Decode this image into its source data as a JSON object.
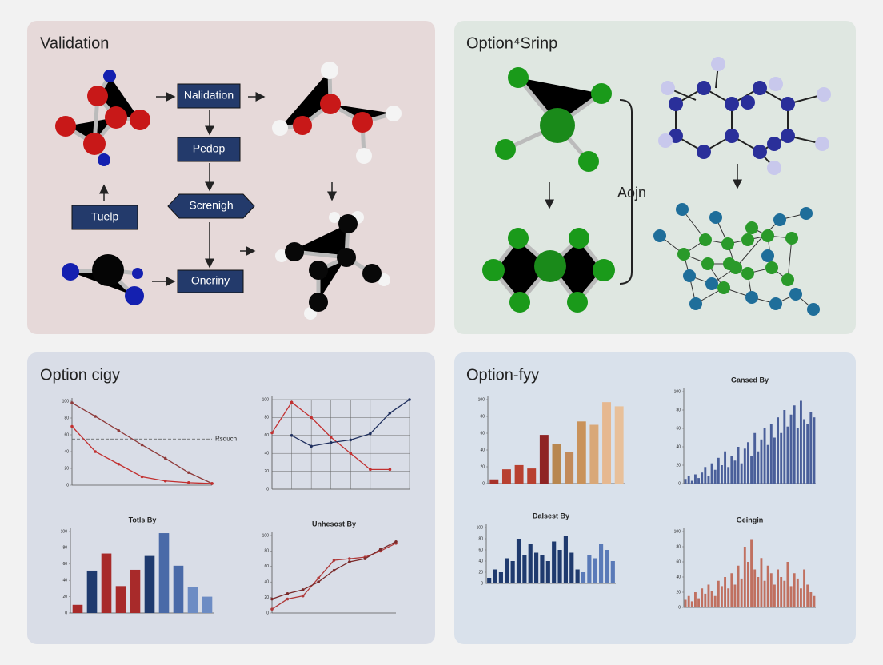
{
  "panels": [
    {
      "title": "Validation",
      "boxes": [
        "Nalidation",
        "Pedop",
        "Screnigh",
        "Tuelp",
        "Oncriny"
      ]
    },
    {
      "title": "Option⁴Srinp",
      "label": "Aojn"
    },
    {
      "title": "Option cigy"
    },
    {
      "title": "Option-fyy"
    }
  ],
  "chart_data": [
    {
      "type": "line",
      "annotation": "Rsduch",
      "reference": 55,
      "ylim": [
        0,
        100
      ],
      "yticks": [
        0,
        20,
        40,
        60,
        80,
        100
      ],
      "series": [
        {
          "color": "#8e3a3a",
          "values": [
            98,
            82,
            65,
            48,
            32,
            15,
            2
          ]
        },
        {
          "color": "#c23030",
          "values": [
            70,
            40,
            25,
            10,
            5,
            3,
            2
          ]
        }
      ]
    },
    {
      "type": "line",
      "grid": true,
      "ylim": [
        0,
        100
      ],
      "yticks": [
        0,
        20,
        40,
        60,
        80,
        100
      ],
      "series": [
        {
          "color": "#c23030",
          "values": [
            63,
            97,
            80,
            58,
            40,
            22,
            22,
            null
          ]
        },
        {
          "color": "#1f2f5e",
          "values": [
            null,
            60,
            48,
            52,
            55,
            62,
            85,
            100
          ]
        }
      ]
    },
    {
      "type": "bar",
      "title": "Totls By",
      "ylim": [
        0,
        100
      ],
      "yticks": [
        0,
        20,
        40,
        60,
        80,
        100
      ],
      "values": [
        10,
        52,
        73,
        33,
        53,
        70,
        98,
        58,
        32,
        20
      ],
      "colors": [
        "#a82a2a",
        "#1f3a6e",
        "#a82a2a",
        "#a82a2a",
        "#a82a2a",
        "#1f3a6e",
        "#4a6aa8",
        "#4a6aa8",
        "#6d8cc4",
        "#6d8cc4"
      ]
    },
    {
      "type": "line",
      "title": "Unhesost By",
      "ylim": [
        0,
        100
      ],
      "yticks": [
        0,
        20,
        40,
        60,
        80,
        100
      ],
      "series": [
        {
          "color": "#b03a3a",
          "values": [
            5,
            18,
            22,
            45,
            68,
            70,
            72,
            80,
            90
          ]
        },
        {
          "color": "#7a2a2a",
          "values": [
            18,
            25,
            30,
            40,
            55,
            66,
            70,
            82,
            92
          ]
        }
      ]
    },
    {
      "type": "bar",
      "ylim": [
        0,
        100
      ],
      "yticks": [
        0,
        20,
        40,
        60,
        80,
        100
      ],
      "values": [
        5,
        17,
        22,
        18,
        58,
        47,
        38,
        74,
        70,
        97,
        92
      ],
      "colors": [
        "#a8322a",
        "#b84030",
        "#b84030",
        "#b84030",
        "#8f2424",
        "#b8874f",
        "#c28a5a",
        "#c9925a",
        "#d9a878",
        "#e6b890",
        "#e8c09a"
      ]
    },
    {
      "type": "bar",
      "title": "Gansed By",
      "ylim": [
        0,
        100
      ],
      "yticks": [
        0,
        20,
        40,
        60,
        80,
        100
      ],
      "color": "#4a5f9a",
      "values": [
        5,
        8,
        3,
        10,
        6,
        12,
        18,
        8,
        22,
        15,
        28,
        20,
        35,
        18,
        30,
        25,
        40,
        22,
        38,
        45,
        30,
        55,
        35,
        48,
        60,
        42,
        65,
        50,
        72,
        55,
        80,
        62,
        75,
        85,
        60,
        90,
        70,
        65,
        78,
        72
      ]
    },
    {
      "type": "bar",
      "title": "Dalsest By",
      "ylim": [
        0,
        100
      ],
      "yticks": [
        0,
        20,
        40,
        60,
        80,
        100
      ],
      "values": [
        10,
        25,
        20,
        45,
        40,
        80,
        50,
        70,
        55,
        50,
        40,
        75,
        60,
        85,
        55,
        25,
        20,
        50,
        45,
        70,
        60,
        40
      ],
      "colors": [
        "#1f3a6e",
        "#1f3a6e",
        "#1f3a6e",
        "#1f3a6e",
        "#1f3a6e",
        "#1f3a6e",
        "#1f3a6e",
        "#1f3a6e",
        "#1f3a6e",
        "#1f3a6e",
        "#1f3a6e",
        "#1f3a6e",
        "#1f3a6e",
        "#1f3a6e",
        "#1f3a6e",
        "#1f3a6e",
        "#5a7ab8",
        "#5a7ab8",
        "#5a7ab8",
        "#5a7ab8",
        "#5a7ab8",
        "#5a7ab8"
      ]
    },
    {
      "type": "bar",
      "title": "Geingin",
      "ylim": [
        0,
        100
      ],
      "yticks": [
        0,
        20,
        40,
        60,
        80,
        100
      ],
      "color": "#c07060",
      "values": [
        10,
        15,
        8,
        20,
        12,
        25,
        18,
        30,
        22,
        15,
        35,
        28,
        40,
        25,
        45,
        30,
        55,
        38,
        80,
        60,
        90,
        50,
        40,
        65,
        35,
        55,
        45,
        30,
        50,
        40,
        35,
        60,
        28,
        45,
        38,
        25,
        50,
        30,
        20,
        15
      ]
    }
  ]
}
